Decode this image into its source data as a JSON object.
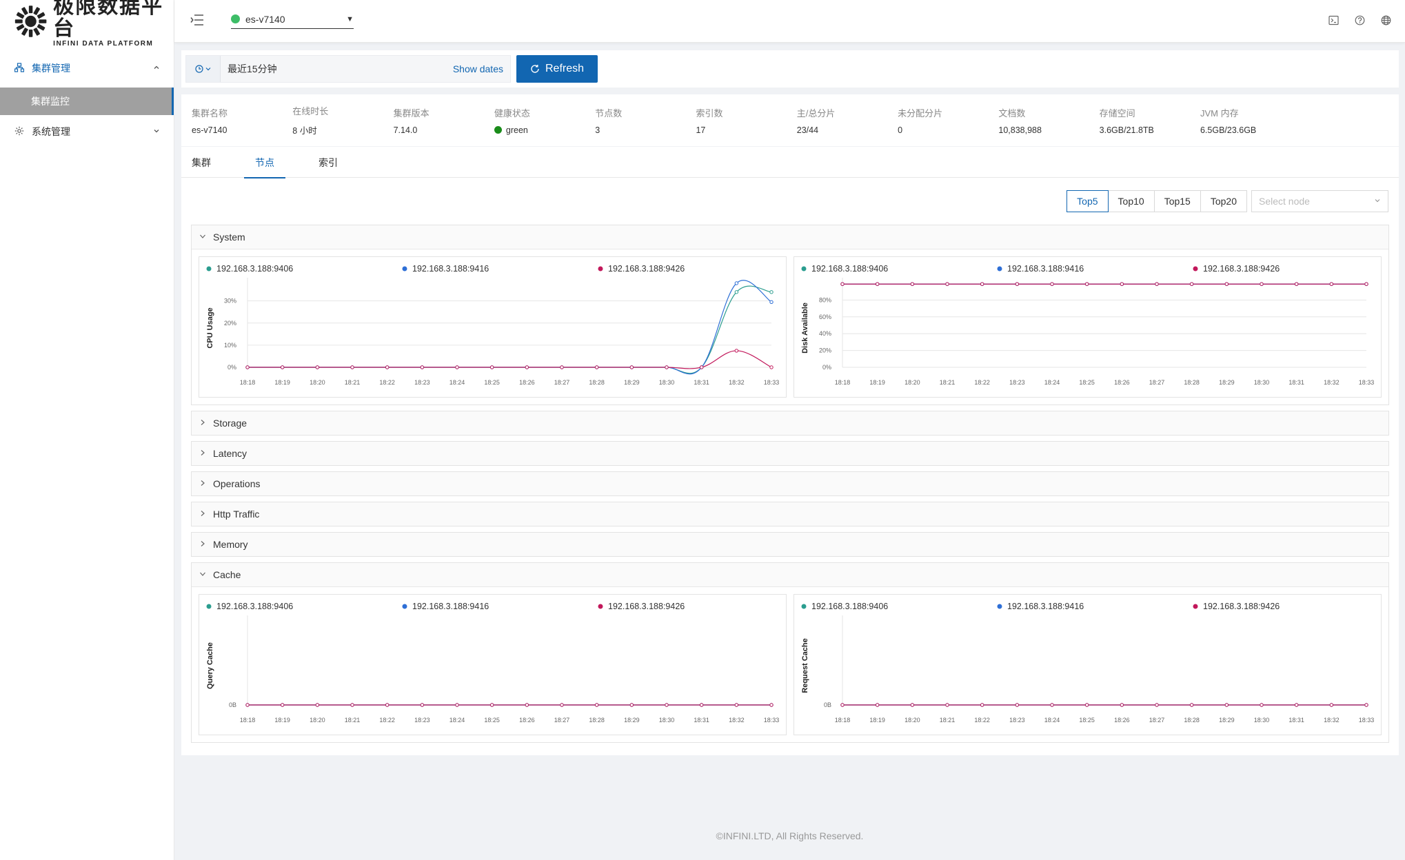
{
  "brand": {
    "name_cn": "极限数据平台",
    "name_en": "INFINI DATA PLATFORM"
  },
  "sidebar": {
    "items": [
      {
        "label": "集群管理",
        "icon": "cluster-icon",
        "open": true,
        "children": [
          {
            "label": "集群监控"
          }
        ]
      },
      {
        "label": "系统管理",
        "icon": "gear-icon",
        "open": false
      }
    ]
  },
  "header": {
    "cluster_name": "es-v7140",
    "cluster_status_color": "#3dbd67",
    "icons": [
      "terminal-icon",
      "help-icon",
      "globe-icon"
    ]
  },
  "timebar": {
    "range_label": "最近15分钟",
    "show_dates": "Show dates",
    "refresh": "Refresh"
  },
  "stats": [
    {
      "label": "集群名称",
      "value": "es-v7140"
    },
    {
      "label": "在线时长",
      "value": "8 小时"
    },
    {
      "label": "集群版本",
      "value": "7.14.0"
    },
    {
      "label": "健康状态",
      "value": "green"
    },
    {
      "label": "节点数",
      "value": "3"
    },
    {
      "label": "索引数",
      "value": "17"
    },
    {
      "label": "主/总分片",
      "value": "23/44"
    },
    {
      "label": "未分配分片",
      "value": "0"
    },
    {
      "label": "文档数",
      "value": "10,838,988"
    },
    {
      "label": "存储空间",
      "value": "3.6GB/21.8TB"
    },
    {
      "label": "JVM 内存",
      "value": "6.5GB/23.6GB"
    }
  ],
  "tabs": [
    {
      "label": "集群"
    },
    {
      "label": "节点",
      "active": true
    },
    {
      "label": "索引"
    }
  ],
  "top_buttons": [
    {
      "label": "Top5",
      "active": true
    },
    {
      "label": "Top10"
    },
    {
      "label": "Top15"
    },
    {
      "label": "Top20"
    }
  ],
  "node_select_placeholder": "Select node",
  "sections": {
    "system": "System",
    "storage": "Storage",
    "latency": "Latency",
    "operations": "Operations",
    "http_traffic": "Http Traffic",
    "memory": "Memory",
    "cache": "Cache"
  },
  "chart_data": [
    {
      "type": "line",
      "ylabel": "CPU Usage",
      "x": [
        "18:18",
        "18:19",
        "18:20",
        "18:21",
        "18:22",
        "18:23",
        "18:24",
        "18:25",
        "18:26",
        "18:27",
        "18:28",
        "18:29",
        "18:30",
        "18:31",
        "18:32",
        "18:33"
      ],
      "yticks": [
        "0%",
        "10%",
        "20%",
        "30%"
      ],
      "ylim": [
        0,
        38
      ],
      "series": [
        {
          "name": "192.168.3.188:9406",
          "color": "#2b9d8f",
          "values": [
            0,
            0,
            0,
            0,
            0,
            0,
            0,
            0,
            0,
            0,
            0,
            0,
            0,
            0,
            34,
            34
          ]
        },
        {
          "name": "192.168.3.188:9416",
          "color": "#2e6fd6",
          "values": [
            0,
            0,
            0,
            0,
            0,
            0,
            0,
            0,
            0,
            0,
            0,
            0,
            0,
            0,
            38,
            29.5
          ]
        },
        {
          "name": "192.168.3.188:9426",
          "color": "#c2185b",
          "values": [
            0,
            0,
            0,
            0,
            0,
            0,
            0,
            0,
            0,
            0,
            0,
            0,
            0,
            0,
            7.5,
            0
          ]
        }
      ]
    },
    {
      "type": "line",
      "ylabel": "Disk Available",
      "x": [
        "18:18",
        "18:19",
        "18:20",
        "18:21",
        "18:22",
        "18:23",
        "18:24",
        "18:25",
        "18:26",
        "18:27",
        "18:28",
        "18:29",
        "18:30",
        "18:31",
        "18:32",
        "18:33"
      ],
      "yticks": [
        "0%",
        "20%",
        "40%",
        "60%",
        "80%"
      ],
      "ylim": [
        0,
        100
      ],
      "series": [
        {
          "name": "192.168.3.188:9406",
          "color": "#2b9d8f",
          "values": [
            99,
            99,
            99,
            99,
            99,
            99,
            99,
            99,
            99,
            99,
            99,
            99,
            99,
            99,
            99,
            99
          ]
        },
        {
          "name": "192.168.3.188:9416",
          "color": "#2e6fd6",
          "values": [
            99,
            99,
            99,
            99,
            99,
            99,
            99,
            99,
            99,
            99,
            99,
            99,
            99,
            99,
            99,
            99
          ]
        },
        {
          "name": "192.168.3.188:9426",
          "color": "#c2185b",
          "values": [
            99,
            99,
            99,
            99,
            99,
            99,
            99,
            99,
            99,
            99,
            99,
            99,
            99,
            99,
            99,
            99
          ]
        }
      ]
    },
    {
      "type": "line",
      "ylabel": "Query Cache",
      "x": [
        "18:18",
        "18:19",
        "18:20",
        "18:21",
        "18:22",
        "18:23",
        "18:24",
        "18:25",
        "18:26",
        "18:27",
        "18:28",
        "18:29",
        "18:30",
        "18:31",
        "18:32",
        "18:33"
      ],
      "yticks": [
        "0B"
      ],
      "ylim": [
        0,
        1
      ],
      "series": [
        {
          "name": "192.168.3.188:9406",
          "color": "#2b9d8f",
          "values": [
            0,
            0,
            0,
            0,
            0,
            0,
            0,
            0,
            0,
            0,
            0,
            0,
            0,
            0,
            0,
            0
          ]
        },
        {
          "name": "192.168.3.188:9416",
          "color": "#2e6fd6",
          "values": [
            0,
            0,
            0,
            0,
            0,
            0,
            0,
            0,
            0,
            0,
            0,
            0,
            0,
            0,
            0,
            0
          ]
        },
        {
          "name": "192.168.3.188:9426",
          "color": "#c2185b",
          "values": [
            0,
            0,
            0,
            0,
            0,
            0,
            0,
            0,
            0,
            0,
            0,
            0,
            0,
            0,
            0,
            0
          ]
        }
      ]
    },
    {
      "type": "line",
      "ylabel": "Request Cache",
      "x": [
        "18:18",
        "18:19",
        "18:20",
        "18:21",
        "18:22",
        "18:23",
        "18:24",
        "18:25",
        "18:26",
        "18:27",
        "18:28",
        "18:29",
        "18:30",
        "18:31",
        "18:32",
        "18:33"
      ],
      "yticks": [
        "0B"
      ],
      "ylim": [
        0,
        1
      ],
      "series": [
        {
          "name": "192.168.3.188:9406",
          "color": "#2b9d8f",
          "values": [
            0,
            0,
            0,
            0,
            0,
            0,
            0,
            0,
            0,
            0,
            0,
            0,
            0,
            0,
            0,
            0
          ]
        },
        {
          "name": "192.168.3.188:9416",
          "color": "#2e6fd6",
          "values": [
            0,
            0,
            0,
            0,
            0,
            0,
            0,
            0,
            0,
            0,
            0,
            0,
            0,
            0,
            0,
            0
          ]
        },
        {
          "name": "192.168.3.188:9426",
          "color": "#c2185b",
          "values": [
            0,
            0,
            0,
            0,
            0,
            0,
            0,
            0,
            0,
            0,
            0,
            0,
            0,
            0,
            0,
            0
          ]
        }
      ]
    }
  ],
  "footer": "©INFINI.LTD, All Rights Reserved."
}
